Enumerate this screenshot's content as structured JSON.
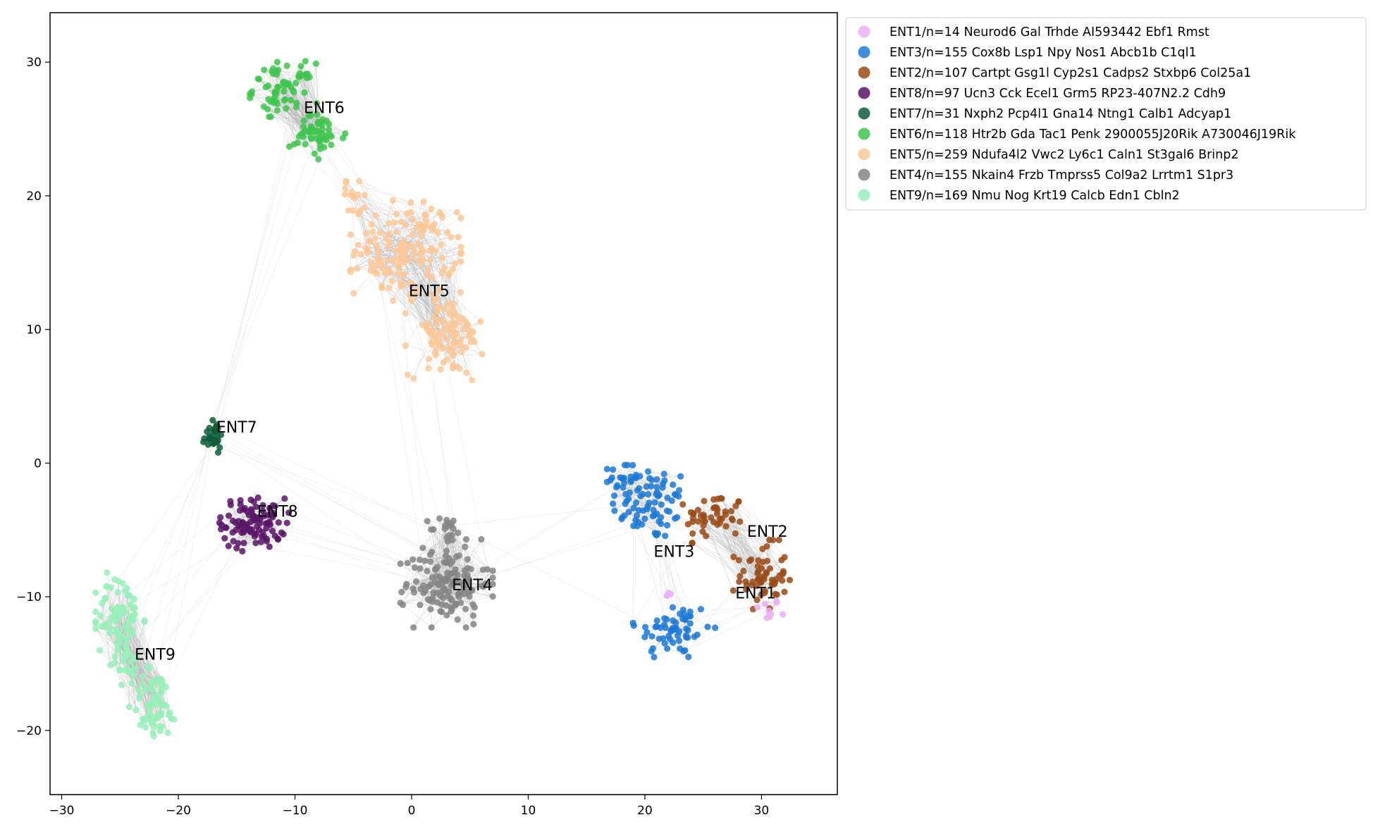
{
  "chart_data": {
    "type": "scatter",
    "xlim": [
      -31,
      36.5
    ],
    "ylim": [
      -24.8,
      33.7
    ],
    "xticks": [
      -30,
      -20,
      -10,
      0,
      10,
      20,
      30
    ],
    "yticks": [
      -20,
      -10,
      0,
      10,
      20,
      30
    ],
    "xtick_labels": [
      "−30",
      "−20",
      "−10",
      "0",
      "10",
      "20",
      "30"
    ],
    "ytick_labels": [
      "−20",
      "−10",
      "0",
      "10",
      "20",
      "30"
    ],
    "title": "",
    "xlabel": "",
    "ylabel": "",
    "grid": false,
    "legend_position": "outside-top-right",
    "edges_color": "#b0b0b0",
    "series": [
      {
        "name": "ENT1/n=14 Neurod6 Gal Trhde AI593442 Ebf1 Rmst",
        "label": "ENT1",
        "color": "#ecb0f6",
        "n": 14,
        "label_pos": [
          29.5,
          -9.8
        ],
        "blobs": [
          [
            30.5,
            -11,
            1.2,
            0.9
          ],
          [
            22,
            -9.8,
            0.8,
            0.5
          ]
        ]
      },
      {
        "name": "ENT3/n=155 Cox8b Lsp1 Npy Nos1 Abcb1b C1ql1",
        "label": "ENT3",
        "color": "#1c78d6",
        "n": 155,
        "label_pos": [
          22.5,
          -6.7
        ],
        "blobs": [
          [
            20.5,
            -3,
            3.4,
            2.8
          ],
          [
            22.5,
            -12.5,
            3.2,
            2.3
          ],
          [
            18,
            -1,
            1.8,
            1.2
          ]
        ]
      },
      {
        "name": "ENT2/n=107 Cartpt Gsg1l Cyp2s1 Cadps2 Stxbp6 Col25a1",
        "label": "ENT2",
        "color": "#9a4b18",
        "n": 107,
        "label_pos": [
          30.5,
          -5.2
        ],
        "blobs": [
          [
            26,
            -4,
            2.5,
            1.8
          ],
          [
            30,
            -8.5,
            2.2,
            2.5
          ]
        ]
      },
      {
        "name": "ENT8/n=97 Ucn3 Cck Ecel1 Grm5 RP23-407N2.2 Cdh9",
        "label": "ENT8",
        "color": "#5a1468",
        "n": 97,
        "label_pos": [
          -11.5,
          -3.7
        ],
        "blobs": [
          [
            -13.5,
            -4.5,
            2.7,
            1.9
          ]
        ]
      },
      {
        "name": "ENT7/n=31 Nxph2 Pcp4l1 Gna14 Ntng1 Calb1 Adcyap1",
        "label": "ENT7",
        "color": "#0e5e3a",
        "n": 31,
        "label_pos": [
          -15,
          2.6
        ],
        "blobs": [
          [
            -17,
            2,
            0.9,
            1.1
          ]
        ]
      },
      {
        "name": "ENT6/n=118 Htr2b Gda Tac1 Penk 2900055J20Rik A730046J19Rik",
        "label": "ENT6",
        "color": "#3ec54c",
        "n": 118,
        "label_pos": [
          -7.5,
          26.5
        ],
        "blobs": [
          [
            -11,
            28,
            2.6,
            1.9
          ],
          [
            -8,
            24.5,
            2.4,
            1.6
          ]
        ]
      },
      {
        "name": "ENT5/n=259 Ndufa4l2 Vwc2 Ly6c1 Caln1 St3gal6 Brinp2",
        "label": "ENT5",
        "color": "#fdc898",
        "n": 259,
        "label_pos": [
          1.5,
          12.8
        ],
        "blobs": [
          [
            -0.5,
            16,
            4.3,
            3.5
          ],
          [
            3,
            9.5,
            3.2,
            3.0
          ],
          [
            -5,
            20,
            1.2,
            1.0
          ]
        ]
      },
      {
        "name": "ENT4/n=155 Nkain4 Frzb Tmprss5 Col9a2 Lrrtm1 S1pr3",
        "label": "ENT4",
        "color": "#858585",
        "n": 155,
        "label_pos": [
          5.2,
          -9.2
        ],
        "blobs": [
          [
            3,
            -9,
            3.6,
            3.0
          ],
          [
            3,
            -5,
            1.5,
            1.0
          ]
        ]
      },
      {
        "name": "ENT9/n=169 Nmu Nog Krt19 Calcb Edn1 Cbln2",
        "label": "ENT9",
        "color": "#98f0b8",
        "n": 169,
        "label_pos": [
          -22,
          -14.4
        ],
        "blobs": [
          [
            -25,
            -11.5,
            1.9,
            3.2
          ],
          [
            -22,
            -18,
            2.0,
            2.7
          ],
          [
            -24.5,
            -15,
            1.2,
            1.5
          ]
        ]
      }
    ]
  }
}
